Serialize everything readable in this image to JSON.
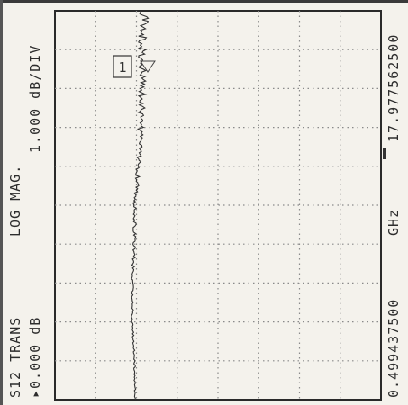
{
  "annotations": {
    "trace_label": "S12 TRANS",
    "format": "LOG MAG.",
    "scale": "1.000 dB/DIV",
    "reference": "▸0.000 dB",
    "start_freq": "0.499437500",
    "freq_unit": "GHz",
    "stop_freq": "17.977562500",
    "marker_label": "1"
  },
  "colors": {
    "trace": "#333333",
    "grid": "#8a8a8a",
    "frame": "#2a2a2a",
    "background": "#f4f2ec"
  },
  "chart_data": {
    "type": "line",
    "title": "",
    "xlabel": "GHz",
    "ylabel": "dB",
    "x_start": 0.4994375,
    "x_stop": 17.9775625,
    "x": [
      0.4994,
      2.2472,
      3.995,
      5.7429,
      7.4907,
      9.2385,
      10.9863,
      12.7341,
      14.482,
      16.2298,
      17.9776
    ],
    "values": [
      -0.03,
      -0.05,
      -0.1,
      -0.1,
      -0.05,
      -0.03,
      0.05,
      0.1,
      0.15,
      0.15,
      0.18
    ],
    "scale_per_div": 1.0,
    "reference_value": 0.0,
    "grid": true,
    "divisions": {
      "freq": 10,
      "magnitude": 8
    },
    "marker": {
      "index": 1,
      "x": 16.0
    }
  }
}
